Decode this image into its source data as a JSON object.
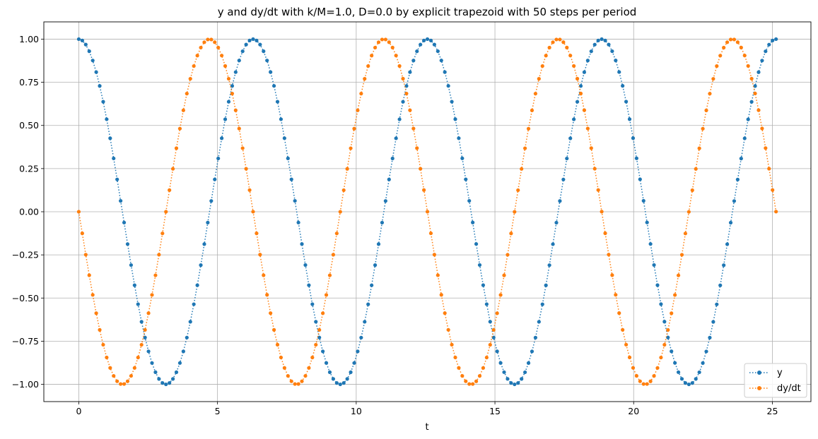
{
  "chart_data": {
    "type": "line",
    "title": "y and dy/dt with k/M=1.0, D=0.0 by explicit trapezoid with 50 steps per period",
    "xlabel": "t",
    "ylabel": "",
    "xlim": [
      -1.26,
      26.39
    ],
    "ylim": [
      -1.1,
      1.1
    ],
    "xticks": [
      0,
      5,
      10,
      15,
      20,
      25
    ],
    "xtick_labels": [
      "0",
      "5",
      "10",
      "15",
      "20",
      "25"
    ],
    "yticks": [
      -1.0,
      -0.75,
      -0.5,
      -0.25,
      0.0,
      0.25,
      0.5,
      0.75,
      1.0
    ],
    "ytick_labels": [
      "−1.00",
      "−0.75",
      "−0.50",
      "−0.25",
      "0.00",
      "0.25",
      "0.50",
      "0.75",
      "1.00"
    ],
    "grid": true,
    "legend_position": "bottom-right",
    "line_style": "dotted",
    "marker": "circle",
    "t_start": 0,
    "t_step": 0.12566,
    "n_points": 201,
    "series": [
      {
        "name": "y",
        "color": "#1f77b4",
        "function": "cos(t)"
      },
      {
        "name": "dy/dt",
        "color": "#ff7f0e",
        "function": "-sin(t)"
      }
    ]
  }
}
